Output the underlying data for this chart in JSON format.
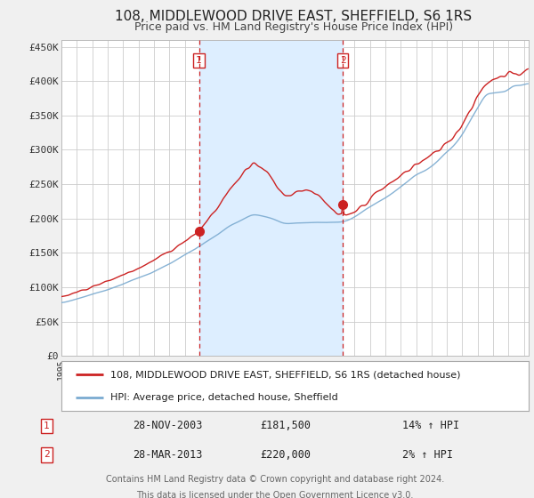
{
  "title": "108, MIDDLEWOOD DRIVE EAST, SHEFFIELD, S6 1RS",
  "subtitle": "Price paid vs. HM Land Registry's House Price Index (HPI)",
  "ylabel_ticks": [
    "£0",
    "£50K",
    "£100K",
    "£150K",
    "£200K",
    "£250K",
    "£300K",
    "£350K",
    "£400K",
    "£450K"
  ],
  "ytick_vals": [
    0,
    50000,
    100000,
    150000,
    200000,
    250000,
    300000,
    350000,
    400000,
    450000
  ],
  "ylim": [
    0,
    460000
  ],
  "xlim_start": 1995.0,
  "xlim_end": 2025.3,
  "bg_color": "#f0f0f0",
  "plot_bg_color": "#ffffff",
  "grid_color": "#cccccc",
  "hpi_color": "#7aaad0",
  "property_color": "#cc2222",
  "sale1_date": 2003.917,
  "sale1_price": 181500,
  "sale2_date": 2013.25,
  "sale2_price": 220000,
  "shade_color": "#ddeeff",
  "legend_entries": [
    "108, MIDDLEWOOD DRIVE EAST, SHEFFIELD, S6 1RS (detached house)",
    "HPI: Average price, detached house, Sheffield"
  ],
  "table_data": [
    [
      "1",
      "28-NOV-2003",
      "£181,500",
      "14% ↑ HPI"
    ],
    [
      "2",
      "28-MAR-2013",
      "£220,000",
      "2% ↑ HPI"
    ]
  ],
  "footnote1": "Contains HM Land Registry data © Crown copyright and database right 2024.",
  "footnote2": "This data is licensed under the Open Government Licence v3.0."
}
